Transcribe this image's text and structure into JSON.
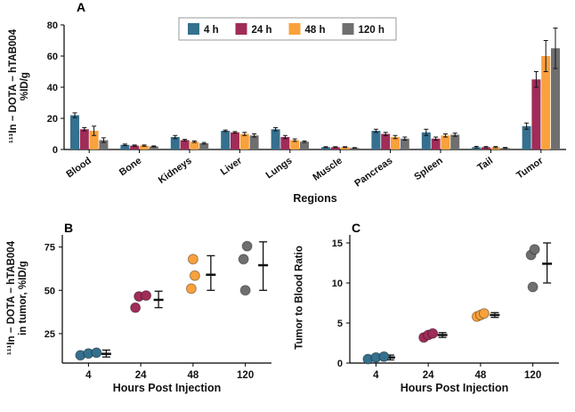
{
  "colors": {
    "time_4h": "#35708e",
    "time_24h": "#a02c58",
    "time_48h": "#f9a13c",
    "time_120h": "#6f6f6f",
    "axis": "#000000",
    "error_bar": "#111111",
    "legend_border": "#9a9a9a"
  },
  "chart_data": [
    {
      "id": "panel-a",
      "panel_label": "A",
      "type": "bar",
      "categories": [
        "Blood",
        "Bone",
        "Kidneys",
        "Liver",
        "Lungs",
        "Muscle",
        "Pancreas",
        "Spleen",
        "Tail",
        "Tumor"
      ],
      "series": [
        {
          "name": "4 h",
          "color": "#35708e",
          "values": [
            22,
            3,
            8,
            12,
            13,
            1.5,
            12,
            11,
            1.5,
            15
          ],
          "errors": [
            1.5,
            0.5,
            1,
            0.5,
            1,
            0.3,
            1,
            2,
            0.5,
            2
          ]
        },
        {
          "name": "24 h",
          "color": "#a02c58",
          "values": [
            13,
            2.5,
            6,
            11,
            8,
            1.5,
            10,
            7,
            1.5,
            45
          ],
          "errors": [
            1,
            0.4,
            0.5,
            0.5,
            1,
            0.3,
            1,
            1,
            0.4,
            5
          ]
        },
        {
          "name": "48 h",
          "color": "#f9a13c",
          "values": [
            12,
            2.5,
            5,
            10,
            6,
            1.5,
            8,
            9,
            1.5,
            60
          ],
          "errors": [
            3,
            0.4,
            0.5,
            1,
            0.8,
            0.3,
            1,
            1,
            0.4,
            10
          ]
        },
        {
          "name": "120 h",
          "color": "#6f6f6f",
          "values": [
            6,
            2,
            4,
            9,
            5,
            1,
            7,
            9.5,
            1,
            65
          ],
          "errors": [
            1.5,
            0.3,
            0.5,
            1,
            0.5,
            0.2,
            1,
            1,
            0.3,
            13
          ]
        }
      ],
      "xlabel": "Regions",
      "ylabel_line1": "¹¹¹In − DOTA − hTAB004",
      "ylabel_line2": "%ID/g",
      "ylim": [
        0,
        80
      ],
      "yticks": [
        0,
        20,
        40,
        60,
        80
      ],
      "legend": {
        "position": "top-center",
        "labels": [
          "4 h",
          "24 h",
          "48 h",
          "120 h"
        ]
      },
      "grid": false
    },
    {
      "id": "panel-b",
      "panel_label": "B",
      "type": "scatter",
      "x_categories": [
        "4",
        "24",
        "48",
        "120"
      ],
      "groups": [
        {
          "time": "4",
          "color": "#35708e",
          "points": [
            {
              "dx": -9,
              "y": 12.5
            },
            {
              "dx": 0,
              "y": 13.5
            },
            {
              "dx": 9,
              "y": 14
            }
          ],
          "mean": 13.3,
          "lo": 11.5,
          "hi": 15.5
        },
        {
          "time": "24",
          "color": "#a02c58",
          "points": [
            {
              "dx": -6,
              "y": 40
            },
            {
              "dx": -2,
              "y": 46.5
            },
            {
              "dx": 6,
              "y": 47
            }
          ],
          "mean": 44.5,
          "lo": 40,
          "hi": 49.5
        },
        {
          "time": "48",
          "color": "#f9a13c",
          "points": [
            {
              "dx": -2,
              "y": 51
            },
            {
              "dx": 2,
              "y": 58.5
            },
            {
              "dx": 0,
              "y": 68
            }
          ],
          "mean": 59,
          "lo": 50,
          "hi": 70
        },
        {
          "time": "120",
          "color": "#6f6f6f",
          "points": [
            {
              "dx": 0,
              "y": 50
            },
            {
              "dx": -2,
              "y": 68
            },
            {
              "dx": 2,
              "y": 75.5
            }
          ],
          "mean": 64.5,
          "lo": 50,
          "hi": 78
        }
      ],
      "xlabel": "Hours Post Injection",
      "ylabel_line1": "¹¹¹In − DOTA − hTAB004",
      "ylabel_line2": "in tumor, %ID/g",
      "ylim": [
        8,
        82
      ],
      "yticks": [
        25,
        50,
        75
      ],
      "err_dx": 20,
      "grid": false
    },
    {
      "id": "panel-c",
      "panel_label": "C",
      "type": "scatter",
      "x_categories": [
        "4",
        "24",
        "48",
        "120"
      ],
      "groups": [
        {
          "time": "4",
          "color": "#35708e",
          "points": [
            {
              "dx": -9,
              "y": 0.5
            },
            {
              "dx": 0,
              "y": 0.7
            },
            {
              "dx": 9,
              "y": 0.8
            }
          ],
          "mean": 0.7,
          "lo": 0.4,
          "hi": 1
        },
        {
          "time": "24",
          "color": "#a02c58",
          "points": [
            {
              "dx": -5,
              "y": 3.2
            },
            {
              "dx": 0,
              "y": 3.5
            },
            {
              "dx": 5,
              "y": 3.7
            }
          ],
          "mean": 3.5,
          "lo": 3.2,
          "hi": 3.8
        },
        {
          "time": "48",
          "color": "#f9a13c",
          "points": [
            {
              "dx": -4,
              "y": 5.8
            },
            {
              "dx": 0,
              "y": 6
            },
            {
              "dx": 4,
              "y": 6.2
            }
          ],
          "mean": 6,
          "lo": 5.7,
          "hi": 6.3
        },
        {
          "time": "120",
          "color": "#6f6f6f",
          "points": [
            {
              "dx": 0,
              "y": 9.5
            },
            {
              "dx": -2,
              "y": 13.5
            },
            {
              "dx": 2,
              "y": 14.2
            }
          ],
          "mean": 12.4,
          "lo": 10,
          "hi": 15
        }
      ],
      "xlabel": "Hours Post Injection",
      "ylabel": "Tumor to Blood Ratio",
      "ylim": [
        0,
        16
      ],
      "yticks": [
        0,
        5,
        10,
        15
      ],
      "err_dx": 16,
      "grid": false
    }
  ]
}
